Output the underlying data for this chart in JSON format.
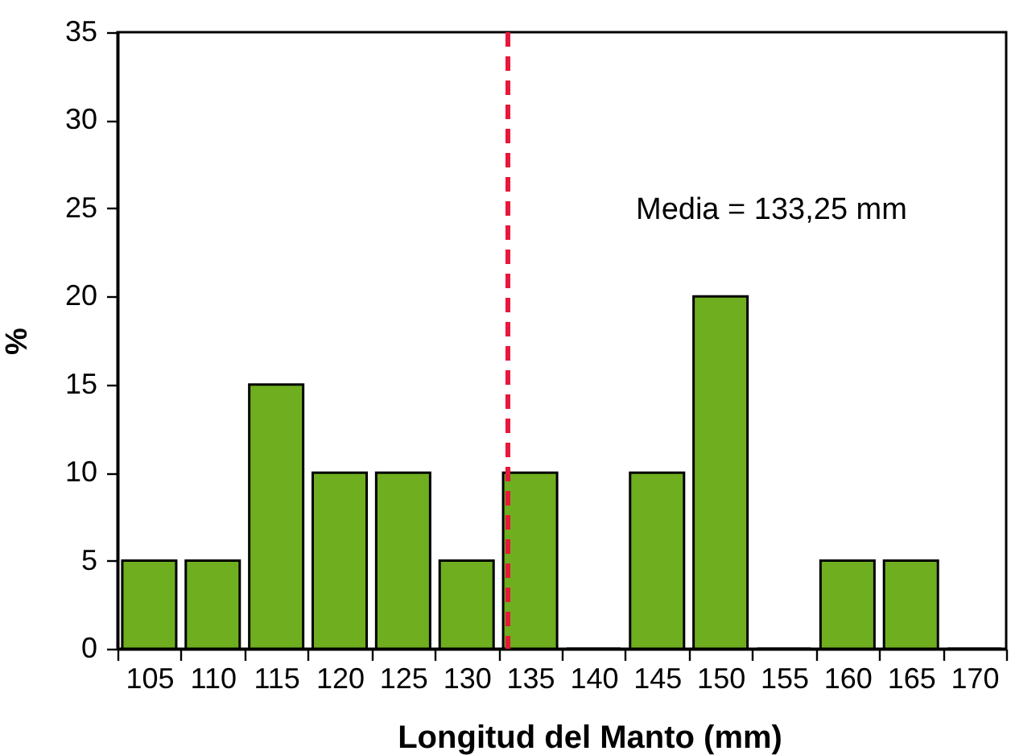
{
  "chart_data": {
    "type": "bar",
    "x": [
      105,
      110,
      115,
      120,
      125,
      130,
      135,
      140,
      145,
      150,
      155,
      160,
      165,
      170
    ],
    "values": [
      5,
      5,
      15,
      10,
      10,
      5,
      10,
      0,
      10,
      20,
      0,
      5,
      5,
      0
    ],
    "color": "#6fae1f",
    "xlabel": "Longitud del Manto (mm)",
    "ylabel": "%",
    "xlim": [
      102.5,
      172.5
    ],
    "xticks": [
      {
        "value": 102.5,
        "label": null
      },
      105,
      {
        "value": 107.5,
        "label": null
      },
      110,
      {
        "value": 112.5,
        "label": null
      },
      115,
      {
        "value": 117.5,
        "label": null
      },
      120,
      {
        "value": 122.5,
        "label": null
      },
      125,
      {
        "value": 127.5,
        "label": null
      },
      130,
      {
        "value": 132.5,
        "label": null
      },
      135,
      {
        "value": 137.5,
        "label": null
      },
      140,
      {
        "value": 142.5,
        "label": null
      },
      145,
      {
        "value": 147.5,
        "label": null
      },
      150,
      {
        "value": 152.5,
        "label": null
      },
      155,
      {
        "value": 157.5,
        "label": null
      },
      160,
      {
        "value": 162.5,
        "label": null
      },
      165,
      {
        "value": 167.5,
        "label": null
      },
      170,
      {
        "value": 172.5,
        "label": null
      }
    ],
    "ylim": [
      0,
      35
    ],
    "yticks": [
      0,
      5,
      10,
      15,
      20,
      25,
      30,
      35
    ],
    "grid": false,
    "ref_lines": [
      {
        "axis": "x",
        "value": 133.25,
        "color": "#e8173b",
        "line_style": "dashed"
      }
    ],
    "annotations": [
      "Media = 133,25 mm"
    ]
  }
}
